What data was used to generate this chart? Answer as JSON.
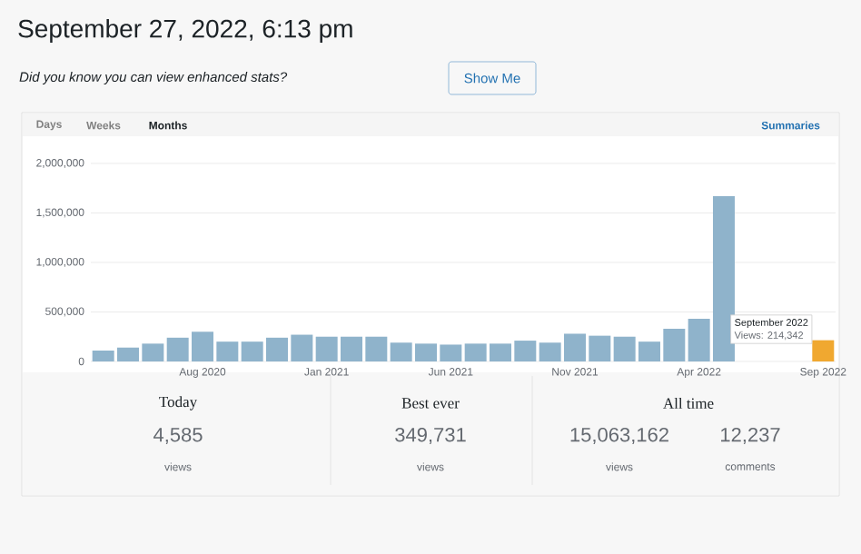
{
  "chart_data": {
    "type": "bar",
    "title": "September 27, 2022, 6:13 pm",
    "subtitle": "Did you know you can view enhanced stats?",
    "categories": [
      null,
      null,
      null,
      null,
      "Aug 2020",
      null,
      null,
      null,
      null,
      "Jan 2021",
      null,
      null,
      null,
      null,
      "Jun 2021",
      null,
      null,
      null,
      null,
      "Nov 2021",
      null,
      null,
      null,
      null,
      "Apr 2022",
      null,
      null,
      null,
      null,
      "Sep 2022"
    ],
    "values": [
      110000,
      140000,
      180000,
      240000,
      300000,
      200000,
      200000,
      240000,
      270000,
      250000,
      250000,
      250000,
      190000,
      180000,
      170000,
      180000,
      180000,
      210000,
      190000,
      280000,
      260000,
      250000,
      200000,
      330000,
      430000,
      1670000,
      null,
      null,
      null,
      214342
    ],
    "colors": [
      "#8fb3cb",
      "#8fb3cb",
      "#8fb3cb",
      "#8fb3cb",
      "#8fb3cb",
      "#8fb3cb",
      "#8fb3cb",
      "#8fb3cb",
      "#8fb3cb",
      "#8fb3cb",
      "#8fb3cb",
      "#8fb3cb",
      "#8fb3cb",
      "#8fb3cb",
      "#8fb3cb",
      "#8fb3cb",
      "#8fb3cb",
      "#8fb3cb",
      "#8fb3cb",
      "#8fb3cb",
      "#8fb3cb",
      "#8fb3cb",
      "#8fb3cb",
      "#8fb3cb",
      "#8fb3cb",
      "#8fb3cb",
      "#8fb3cb",
      "#8fb3cb",
      "#8fb3cb",
      "#f0a830"
    ],
    "ylim": [
      0,
      2000000
    ],
    "yticks": [
      0,
      {
        "value": 500000,
        "label": "500,000"
      },
      {
        "value": 1000000,
        "label": "1,000,000"
      },
      {
        "value": 1500000,
        "label": "1,500,000"
      },
      {
        "value": 2000000,
        "label": "2,000,000"
      }
    ],
    "grid": "y",
    "annotations": [
      "Show Me",
      "Days",
      "Weeks",
      "Months",
      "Summaries",
      {
        "text": "September 2022",
        "x": "Sep 2022",
        "y": 214342
      },
      "Views: 214,342",
      "Today",
      "4,585",
      "views",
      "Best ever",
      "349,731",
      "views",
      "All time",
      "15,063,162",
      "views",
      "12,237",
      "comments"
    ]
  }
}
